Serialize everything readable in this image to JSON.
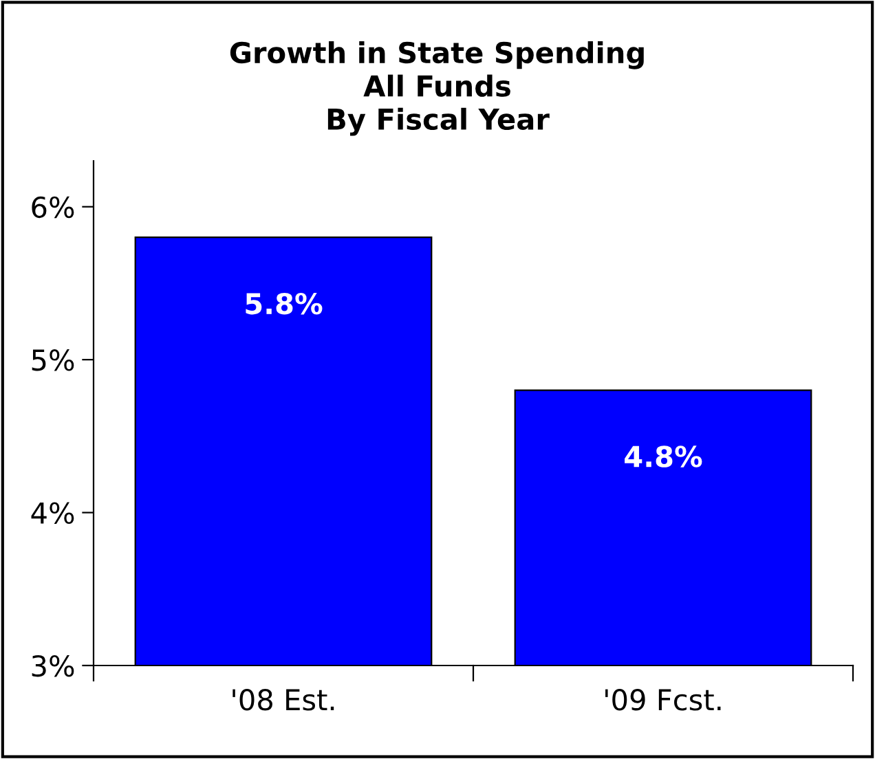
{
  "chart_data": {
    "type": "bar",
    "title": "Growth in State Spending\nAll Funds\nBy Fiscal Year",
    "categories": [
      "'08 Est.",
      "'09 Fcst."
    ],
    "values": [
      5.8,
      4.8
    ],
    "value_labels": [
      "5.8%",
      "4.8%"
    ],
    "color": "#0000ff",
    "ylim": [
      3,
      6.3
    ],
    "yticks": [
      {
        "value": 3,
        "label": "3%"
      },
      {
        "value": 4,
        "label": "4%"
      },
      {
        "value": 5,
        "label": "5%"
      },
      {
        "value": 6,
        "label": "6%"
      }
    ],
    "grid": false,
    "legend": false
  }
}
